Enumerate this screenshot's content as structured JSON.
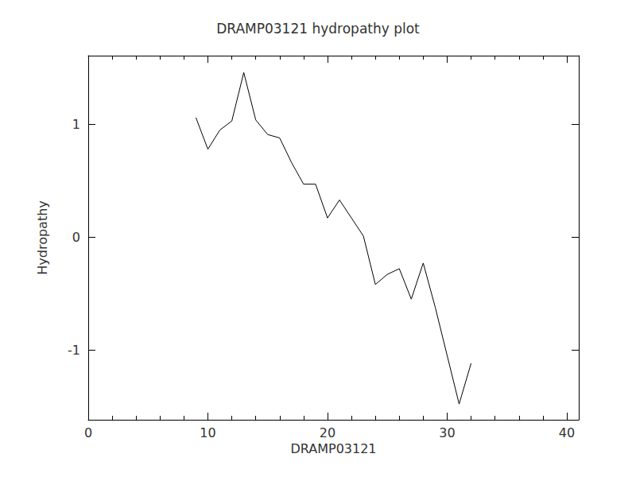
{
  "chart_data": {
    "type": "line",
    "title": "DRAMP03121 hydropathy plot",
    "xlabel": "DRAMP03121",
    "ylabel": "Hydropathy",
    "x": [
      9,
      10,
      11,
      12,
      13,
      14,
      15,
      16,
      17,
      18,
      19,
      20,
      21,
      22,
      23,
      24,
      25,
      26,
      27,
      28,
      29,
      30,
      31,
      32
    ],
    "values": [
      1.06,
      0.78,
      0.95,
      1.03,
      1.46,
      1.04,
      0.91,
      0.88,
      0.66,
      0.47,
      0.47,
      0.17,
      0.33,
      0.17,
      0.01,
      -0.42,
      -0.33,
      -0.28,
      -0.55,
      -0.23,
      -0.62,
      -1.05,
      -1.48,
      -1.12
    ],
    "color": "#000000",
    "xlim": [
      0,
      41
    ],
    "xticks": [
      0,
      10,
      20,
      30,
      40
    ],
    "ylim": [
      -1.62,
      1.61
    ],
    "yticks": [
      -1,
      0,
      1
    ],
    "grid": false
  }
}
